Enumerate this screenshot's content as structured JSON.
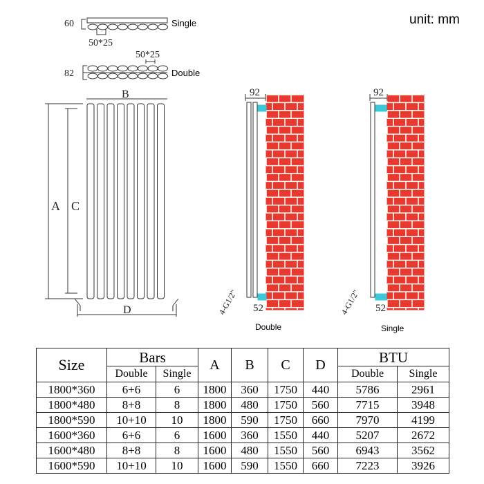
{
  "unit_label": "unit: mm",
  "cross_sections": {
    "single": {
      "label": "Single",
      "depth": "60",
      "bar_size": "50*25"
    },
    "double": {
      "label": "Double",
      "depth": "82",
      "bar_size": "50*25"
    }
  },
  "front_view": {
    "dim_a": "A",
    "dim_b": "B",
    "dim_c": "C",
    "dim_d": "D"
  },
  "side_views": [
    {
      "label": "Double",
      "top_dim": "92",
      "bottom_dim": "52",
      "thread": "4-G1/2\""
    },
    {
      "label": "Single",
      "top_dim": "92",
      "bottom_dim": "52",
      "thread": "4-G1/2\""
    }
  ],
  "colors": {
    "brick": "#e8392e",
    "mortar": "#ffffff",
    "bracket": "#3cc8d8"
  },
  "table": {
    "headers": {
      "size": "Size",
      "bars": "Bars",
      "a": "A",
      "b": "B",
      "c": "C",
      "d": "D",
      "btu": "BTU",
      "double": "Double",
      "single": "Single"
    },
    "rows": [
      [
        "1800*360",
        "6+6",
        "6",
        "1800",
        "360",
        "1750",
        "440",
        "5786",
        "2961"
      ],
      [
        "1800*480",
        "8+8",
        "8",
        "1800",
        "480",
        "1750",
        "560",
        "7715",
        "3948"
      ],
      [
        "1800*590",
        "10+10",
        "10",
        "1800",
        "590",
        "1750",
        "660",
        "7970",
        "4199"
      ],
      [
        "1600*360",
        "6+6",
        "6",
        "1600",
        "360",
        "1550",
        "440",
        "5207",
        "2672"
      ],
      [
        "1600*480",
        "8+8",
        "8",
        "1600",
        "480",
        "1550",
        "560",
        "6943",
        "3562"
      ],
      [
        "1600*590",
        "10+10",
        "10",
        "1600",
        "590",
        "1550",
        "660",
        "7223",
        "3926"
      ]
    ]
  }
}
